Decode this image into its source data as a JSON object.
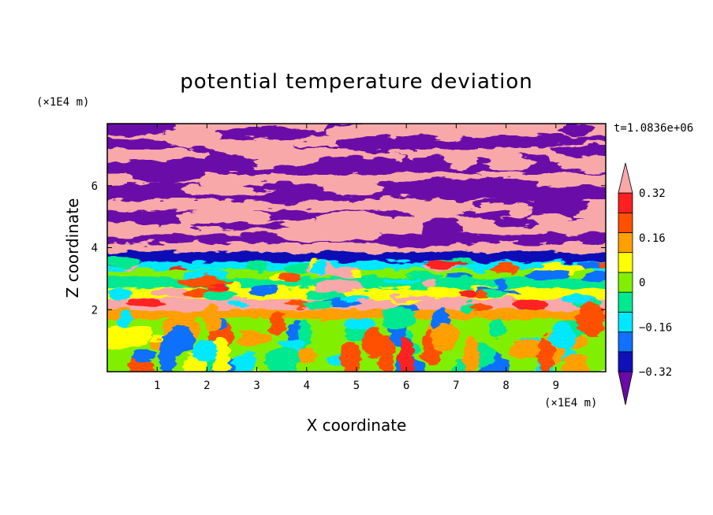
{
  "chart_data": {
    "type": "heatmap",
    "title": "potential temperature deviation",
    "xlabel": "X coordinate",
    "ylabel": "Z coordinate",
    "x_unit": "(×1E4 m)",
    "y_unit": "(×1E4 m)",
    "time_label": "t=1.0836e+06",
    "xlim": [
      0,
      10
    ],
    "ylim": [
      0,
      8
    ],
    "xticks": [
      "1",
      "2",
      "3",
      "4",
      "5",
      "6",
      "7",
      "8",
      "9"
    ],
    "yticks": [
      "2",
      "4",
      "6"
    ],
    "colorbar": {
      "levels": [
        -0.4,
        -0.32,
        -0.24,
        -0.16,
        -0.08,
        0,
        0.08,
        0.16,
        0.24,
        0.32,
        0.4
      ],
      "tick_labels": [
        "0.32",
        "0.16",
        "0",
        "−0.16",
        "−0.32"
      ],
      "tick_values": [
        0.32,
        0.16,
        0,
        -0.16,
        -0.32
      ],
      "colors": [
        "#6a0aa8",
        "#1010b8",
        "#1070ff",
        "#00e8ff",
        "#00e890",
        "#80f000",
        "#ffff00",
        "#ffa000",
        "#ff5000",
        "#ff2020",
        "#f8a8a8"
      ],
      "extend": "both"
    }
  }
}
